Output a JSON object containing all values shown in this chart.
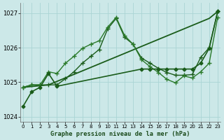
{
  "title": "Graphe pression niveau de la mer (hPa)",
  "bg_color": "#cce8e8",
  "grid_color": "#aad4d4",
  "xlim": [
    -0.3,
    23.3
  ],
  "ylim": [
    1023.85,
    1027.3
  ],
  "yticks": [
    1024,
    1025,
    1026,
    1027
  ],
  "xticks": [
    0,
    1,
    2,
    3,
    4,
    5,
    6,
    7,
    8,
    9,
    10,
    11,
    12,
    13,
    14,
    15,
    16,
    17,
    18,
    19,
    20,
    21,
    22,
    23
  ],
  "series": [
    {
      "x": [
        0,
        3,
        22,
        23
      ],
      "y": [
        1024.85,
        1024.92,
        1026.85,
        1027.05
      ],
      "style": "-",
      "marker": null,
      "linewidth": 1.3,
      "color": "#1a5c1a"
    },
    {
      "x": [
        0,
        1,
        2,
        3,
        4,
        5,
        6,
        7,
        8,
        9,
        10,
        11,
        12,
        13,
        14,
        15,
        16,
        17,
        18,
        19,
        20,
        21,
        22,
        23
      ],
      "y": [
        1024.85,
        1024.92,
        1024.92,
        1024.92,
        1024.92,
        1025.1,
        1025.3,
        1025.55,
        1025.75,
        1025.95,
        1026.55,
        1026.85,
        1026.3,
        1026.1,
        1025.7,
        1025.55,
        1025.4,
        1025.28,
        1025.2,
        1025.2,
        1025.22,
        1025.72,
        1026.0,
        1027.05
      ],
      "style": "-",
      "marker": "+",
      "markersize": 5,
      "linewidth": 1.0,
      "color": "#1a5c1a"
    },
    {
      "x": [
        0,
        1,
        2,
        3,
        4,
        5,
        6,
        7,
        8,
        9,
        10,
        11,
        12,
        13,
        14,
        15,
        16,
        17,
        18,
        19,
        20,
        21,
        22,
        23
      ],
      "y": [
        1024.85,
        1024.92,
        1024.92,
        1025.3,
        1025.25,
        1025.55,
        1025.75,
        1025.98,
        1026.1,
        1026.2,
        1026.6,
        1026.88,
        1026.35,
        1026.1,
        1025.65,
        1025.45,
        1025.28,
        1025.08,
        1024.98,
        1025.18,
        1025.12,
        1025.3,
        1025.55,
        1026.88
      ],
      "style": "-",
      "marker": "+",
      "markersize": 5,
      "linewidth": 1.0,
      "color": "#2a7a2a"
    },
    {
      "x": [
        0,
        1,
        2,
        3,
        4,
        14,
        15,
        16,
        17,
        18,
        19,
        20,
        21,
        22,
        23
      ],
      "y": [
        1024.3,
        1024.72,
        1024.85,
        1025.25,
        1024.88,
        1025.38,
        1025.38,
        1025.38,
        1025.38,
        1025.38,
        1025.38,
        1025.38,
        1025.55,
        1025.98,
        1027.05
      ],
      "style": "-",
      "marker": "D",
      "markersize": 2.5,
      "linewidth": 1.2,
      "color": "#1a5c1a"
    }
  ]
}
